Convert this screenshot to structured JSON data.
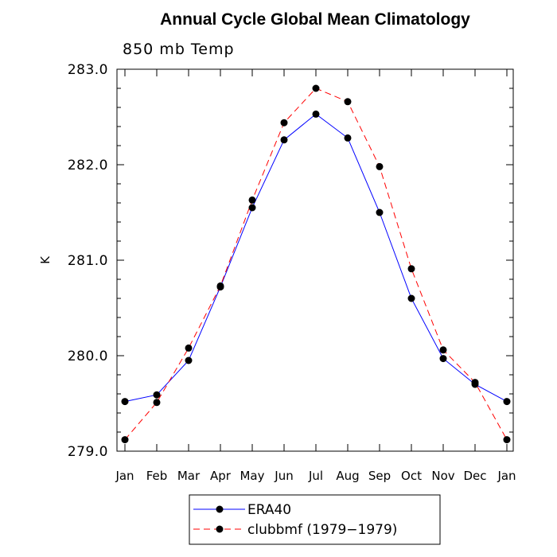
{
  "chart_data": {
    "type": "line",
    "title": "Annual Cycle Global Mean Climatology",
    "subtitle": "850 mb Temp",
    "xlabel": "",
    "ylabel": "K",
    "categories": [
      "Jan",
      "Feb",
      "Mar",
      "Apr",
      "May",
      "Jun",
      "Jul",
      "Aug",
      "Sep",
      "Oct",
      "Nov",
      "Dec",
      "Jan"
    ],
    "ylim": [
      279.0,
      283.0
    ],
    "yticks": [
      "279.0",
      "280.0",
      "281.0",
      "282.0",
      "283.0"
    ],
    "grid": false,
    "legend_position": "bottom-center",
    "series": [
      {
        "name": "ERA40",
        "color": "#0000ff",
        "line_style": "solid",
        "marker": "filled-circle",
        "values": [
          279.52,
          279.59,
          279.95,
          280.72,
          281.55,
          282.26,
          282.53,
          282.28,
          281.5,
          280.6,
          279.97,
          279.7,
          279.52
        ]
      },
      {
        "name": "clubbmf (1979−1979)",
        "color": "#ff0000",
        "line_style": "dashed",
        "marker": "filled-circle",
        "values": [
          279.12,
          279.51,
          280.08,
          280.73,
          281.63,
          282.44,
          282.8,
          282.66,
          281.98,
          280.91,
          280.06,
          279.72,
          279.12
        ]
      }
    ]
  }
}
